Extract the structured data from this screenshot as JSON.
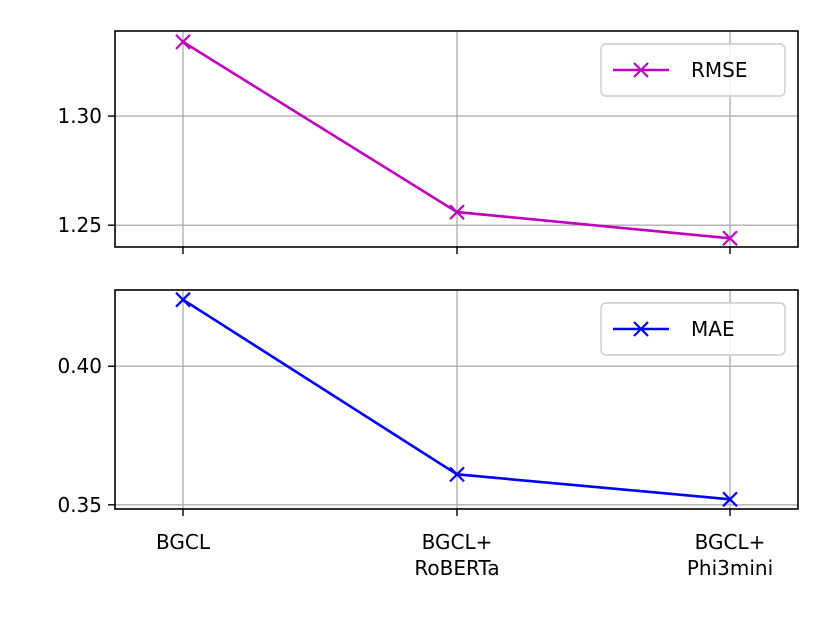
{
  "chart_data": [
    {
      "type": "line",
      "categories": [
        "BGCL",
        "BGCL+\nRoBERTa",
        "BGCL+\nPhi3mini"
      ],
      "series": [
        {
          "name": "RMSE",
          "values": [
            1.334,
            1.256,
            1.244
          ],
          "color": "#bf00bf",
          "marker": "x"
        }
      ],
      "ylim": [
        1.24,
        1.339
      ],
      "yticks": [
        1.25,
        1.3
      ],
      "ytick_labels": [
        "1.25",
        "1.30"
      ],
      "grid": true,
      "legend_position": "top-right",
      "xtick_labels_shown": false
    },
    {
      "type": "line",
      "categories": [
        "BGCL",
        "BGCL+\nRoBERTa",
        "BGCL+\nPhi3mini"
      ],
      "series": [
        {
          "name": "MAE",
          "values": [
            0.424,
            0.361,
            0.352
          ],
          "color": "#0000ff",
          "marker": "x"
        }
      ],
      "ylim": [
        0.3485,
        0.4275
      ],
      "yticks": [
        0.35,
        0.4
      ],
      "ytick_labels": [
        "0.35",
        "0.40"
      ],
      "grid": true,
      "legend_position": "top-right",
      "xtick_labels_shown": true
    }
  ]
}
